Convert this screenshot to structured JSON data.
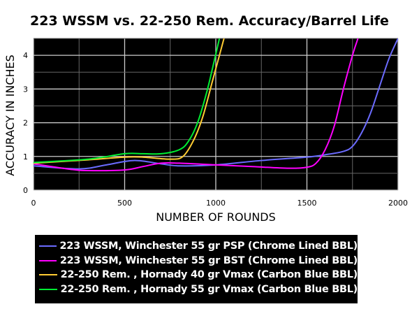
{
  "chart_data": {
    "type": "line",
    "title": "223 WSSM vs. 22-250 Rem. Accuracy/Barrel Life",
    "xlabel": "NUMBER OF ROUNDS",
    "ylabel": "ACCURACY  IN  INCHES",
    "xlim": [
      0,
      2000
    ],
    "ylim": [
      0,
      4.5
    ],
    "xticks": [
      0,
      500,
      1000,
      1500,
      2000
    ],
    "yticks": [
      0,
      1,
      2,
      3,
      4
    ],
    "grid": true,
    "legend_position": "bottom",
    "series": [
      {
        "name": "223 WSSM, Winchester 55 gr PSP (Chrome Lined BBL)",
        "color": "#6b6bff",
        "x": [
          0,
          250,
          400,
          550,
          700,
          800,
          1000,
          1250,
          1500,
          1600,
          1700,
          1750,
          1800,
          1850,
          1900,
          1950,
          2000
        ],
        "y": [
          0.72,
          0.63,
          0.75,
          0.88,
          0.78,
          0.72,
          0.75,
          0.88,
          0.98,
          1.05,
          1.15,
          1.3,
          1.7,
          2.3,
          3.1,
          3.9,
          4.5
        ]
      },
      {
        "name": "223 WSSM, Winchester 55 gr BST (Chrome Lined BBL)",
        "color": "#ff00ff",
        "x": [
          0,
          200,
          300,
          500,
          600,
          700,
          800,
          1000,
          1200,
          1400,
          1500,
          1550,
          1600,
          1650,
          1700,
          1750,
          1780
        ],
        "y": [
          0.78,
          0.62,
          0.58,
          0.6,
          0.7,
          0.8,
          0.8,
          0.75,
          0.7,
          0.65,
          0.68,
          0.8,
          1.2,
          1.9,
          3.0,
          4.0,
          4.5
        ]
      },
      {
        "name": "22-250 Rem. , Hornady 40 gr Vmax (Carbon Blue BBL)",
        "color": "#ffcc33",
        "x": [
          0,
          300,
          500,
          600,
          750,
          820,
          880,
          930,
          980,
          1020,
          1045
        ],
        "y": [
          0.8,
          0.9,
          0.98,
          0.98,
          0.92,
          1.0,
          1.5,
          2.2,
          3.2,
          4.0,
          4.5
        ]
      },
      {
        "name": "22-250 Rem. , Hornady 55 gr Vmax (Carbon Blue BBL)",
        "color": "#00ee33",
        "x": [
          0,
          300,
          500,
          600,
          700,
          800,
          850,
          900,
          950,
          990,
          1020
        ],
        "y": [
          0.82,
          0.92,
          1.08,
          1.08,
          1.08,
          1.2,
          1.45,
          2.0,
          2.9,
          3.8,
          4.5
        ]
      }
    ]
  }
}
